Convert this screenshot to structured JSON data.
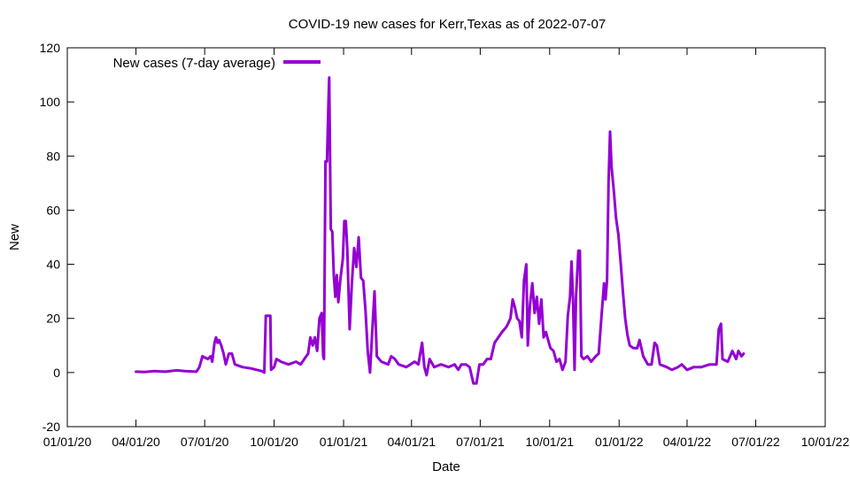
{
  "chart_data": {
    "type": "line",
    "title": "COVID-19 new cases for Kerr,Texas as of 2022-07-07",
    "xlabel": "Date",
    "ylabel": "New",
    "xlim": [
      "2020-01-01",
      "2022-10-01"
    ],
    "ylim": [
      -20,
      120
    ],
    "x_ticks": [
      {
        "date": "2020-01-01",
        "label": "01/01/20"
      },
      {
        "date": "2020-04-01",
        "label": "04/01/20"
      },
      {
        "date": "2020-07-01",
        "label": "07/01/20"
      },
      {
        "date": "2020-10-01",
        "label": "10/01/20"
      },
      {
        "date": "2021-01-01",
        "label": "01/01/21"
      },
      {
        "date": "2021-04-01",
        "label": "04/01/21"
      },
      {
        "date": "2021-07-01",
        "label": "07/01/21"
      },
      {
        "date": "2021-10-01",
        "label": "10/01/21"
      },
      {
        "date": "2022-01-01",
        "label": "01/01/22"
      },
      {
        "date": "2022-04-01",
        "label": "04/01/22"
      },
      {
        "date": "2022-07-01",
        "label": "07/01/22"
      },
      {
        "date": "2022-10-01",
        "label": "10/01/22"
      }
    ],
    "y_ticks": [
      -20,
      0,
      20,
      40,
      60,
      80,
      100,
      120
    ],
    "grid": false,
    "legend": {
      "position": "top-left"
    },
    "series": [
      {
        "name": "New cases (7-day average)",
        "color": "#9400d3",
        "points": [
          [
            "2020-04-01",
            0.3
          ],
          [
            "2020-04-12",
            0.2
          ],
          [
            "2020-04-25",
            0.5
          ],
          [
            "2020-05-10",
            0.3
          ],
          [
            "2020-05-25",
            0.8
          ],
          [
            "2020-06-05",
            0.5
          ],
          [
            "2020-06-20",
            0.3
          ],
          [
            "2020-06-24",
            2
          ],
          [
            "2020-06-28",
            6
          ],
          [
            "2020-07-05",
            5
          ],
          [
            "2020-07-09",
            6
          ],
          [
            "2020-07-11",
            4
          ],
          [
            "2020-07-14",
            11
          ],
          [
            "2020-07-16",
            13
          ],
          [
            "2020-07-18",
            11
          ],
          [
            "2020-07-20",
            12
          ],
          [
            "2020-07-23",
            10
          ],
          [
            "2020-07-26",
            7
          ],
          [
            "2020-07-29",
            3
          ],
          [
            "2020-08-02",
            7
          ],
          [
            "2020-08-06",
            7
          ],
          [
            "2020-08-10",
            3
          ],
          [
            "2020-08-20",
            2
          ],
          [
            "2020-09-01",
            1.5
          ],
          [
            "2020-09-15",
            0.5
          ],
          [
            "2020-09-18",
            0
          ],
          [
            "2020-09-20",
            21
          ],
          [
            "2020-09-23",
            21
          ],
          [
            "2020-09-26",
            21
          ],
          [
            "2020-09-27",
            1
          ],
          [
            "2020-10-01",
            2
          ],
          [
            "2020-10-04",
            5
          ],
          [
            "2020-10-10",
            4
          ],
          [
            "2020-10-20",
            3
          ],
          [
            "2020-10-30",
            4
          ],
          [
            "2020-11-05",
            3
          ],
          [
            "2020-11-10",
            5
          ],
          [
            "2020-11-15",
            7
          ],
          [
            "2020-11-18",
            13
          ],
          [
            "2020-11-21",
            10
          ],
          [
            "2020-11-24",
            13
          ],
          [
            "2020-11-27",
            8
          ],
          [
            "2020-11-30",
            20
          ],
          [
            "2020-12-03",
            22
          ],
          [
            "2020-12-05",
            6
          ],
          [
            "2020-12-06",
            5
          ],
          [
            "2020-12-08",
            78
          ],
          [
            "2020-12-10",
            78
          ],
          [
            "2020-12-12",
            100
          ],
          [
            "2020-12-13",
            109
          ],
          [
            "2020-12-15",
            53
          ],
          [
            "2020-12-17",
            52
          ],
          [
            "2020-12-19",
            36
          ],
          [
            "2020-12-21",
            28
          ],
          [
            "2020-12-23",
            36
          ],
          [
            "2020-12-25",
            26
          ],
          [
            "2020-12-28",
            35
          ],
          [
            "2020-12-31",
            42
          ],
          [
            "2021-01-02",
            56
          ],
          [
            "2021-01-04",
            56
          ],
          [
            "2021-01-06",
            45
          ],
          [
            "2021-01-09",
            16
          ],
          [
            "2021-01-12",
            33
          ],
          [
            "2021-01-15",
            46
          ],
          [
            "2021-01-18",
            39
          ],
          [
            "2021-01-21",
            50
          ],
          [
            "2021-01-24",
            35
          ],
          [
            "2021-01-27",
            34
          ],
          [
            "2021-01-30",
            23
          ],
          [
            "2021-02-02",
            8
          ],
          [
            "2021-02-05",
            0
          ],
          [
            "2021-02-08",
            15
          ],
          [
            "2021-02-11",
            30
          ],
          [
            "2021-02-14",
            6
          ],
          [
            "2021-02-20",
            4
          ],
          [
            "2021-03-01",
            3
          ],
          [
            "2021-03-05",
            6
          ],
          [
            "2021-03-10",
            5
          ],
          [
            "2021-03-15",
            3
          ],
          [
            "2021-03-25",
            2
          ],
          [
            "2021-04-05",
            4
          ],
          [
            "2021-04-10",
            3
          ],
          [
            "2021-04-15",
            11
          ],
          [
            "2021-04-18",
            2
          ],
          [
            "2021-04-21",
            -1
          ],
          [
            "2021-04-25",
            5
          ],
          [
            "2021-05-01",
            2
          ],
          [
            "2021-05-10",
            3
          ],
          [
            "2021-05-20",
            2
          ],
          [
            "2021-05-28",
            3
          ],
          [
            "2021-06-02",
            1
          ],
          [
            "2021-06-06",
            3
          ],
          [
            "2021-06-12",
            3
          ],
          [
            "2021-06-17",
            2
          ],
          [
            "2021-06-22",
            -4
          ],
          [
            "2021-06-26",
            -4
          ],
          [
            "2021-06-30",
            3
          ],
          [
            "2021-07-05",
            3
          ],
          [
            "2021-07-10",
            5
          ],
          [
            "2021-07-15",
            5
          ],
          [
            "2021-07-20",
            11
          ],
          [
            "2021-07-25",
            13
          ],
          [
            "2021-07-30",
            15
          ],
          [
            "2021-08-05",
            17
          ],
          [
            "2021-08-10",
            20
          ],
          [
            "2021-08-13",
            27
          ],
          [
            "2021-08-16",
            24
          ],
          [
            "2021-08-19",
            20
          ],
          [
            "2021-08-22",
            19
          ],
          [
            "2021-08-25",
            13
          ],
          [
            "2021-08-28",
            34
          ],
          [
            "2021-08-31",
            40
          ],
          [
            "2021-09-02",
            10
          ],
          [
            "2021-09-05",
            25
          ],
          [
            "2021-09-08",
            33
          ],
          [
            "2021-09-11",
            22
          ],
          [
            "2021-09-14",
            28
          ],
          [
            "2021-09-17",
            18
          ],
          [
            "2021-09-20",
            27
          ],
          [
            "2021-09-23",
            13
          ],
          [
            "2021-09-26",
            15
          ],
          [
            "2021-09-29",
            12
          ],
          [
            "2021-10-02",
            9
          ],
          [
            "2021-10-06",
            8
          ],
          [
            "2021-10-10",
            4
          ],
          [
            "2021-10-14",
            5
          ],
          [
            "2021-10-18",
            1
          ],
          [
            "2021-10-22",
            4
          ],
          [
            "2021-10-25",
            21
          ],
          [
            "2021-10-28",
            28
          ],
          [
            "2021-10-30",
            41
          ],
          [
            "2021-11-01",
            27
          ],
          [
            "2021-11-03",
            1
          ],
          [
            "2021-11-05",
            28
          ],
          [
            "2021-11-08",
            45
          ],
          [
            "2021-11-10",
            45
          ],
          [
            "2021-11-12",
            6
          ],
          [
            "2021-11-15",
            5
          ],
          [
            "2021-11-20",
            6
          ],
          [
            "2021-11-25",
            4
          ],
          [
            "2021-12-01",
            6
          ],
          [
            "2021-12-05",
            7
          ],
          [
            "2021-12-09",
            22
          ],
          [
            "2021-12-12",
            33
          ],
          [
            "2021-12-14",
            27
          ],
          [
            "2021-12-16",
            34
          ],
          [
            "2021-12-18",
            70
          ],
          [
            "2021-12-20",
            89
          ],
          [
            "2021-12-22",
            76
          ],
          [
            "2021-12-25",
            67
          ],
          [
            "2021-12-28",
            57
          ],
          [
            "2021-12-31",
            51
          ],
          [
            "2022-01-03",
            41
          ],
          [
            "2022-01-06",
            30
          ],
          [
            "2022-01-09",
            20
          ],
          [
            "2022-01-12",
            14
          ],
          [
            "2022-01-15",
            10
          ],
          [
            "2022-01-20",
            9
          ],
          [
            "2022-01-25",
            9
          ],
          [
            "2022-01-28",
            12
          ],
          [
            "2022-02-02",
            6
          ],
          [
            "2022-02-08",
            3
          ],
          [
            "2022-02-13",
            3
          ],
          [
            "2022-02-17",
            11
          ],
          [
            "2022-02-20",
            10
          ],
          [
            "2022-02-24",
            3
          ],
          [
            "2022-03-05",
            2
          ],
          [
            "2022-03-12",
            1
          ],
          [
            "2022-03-20",
            2
          ],
          [
            "2022-03-25",
            3
          ],
          [
            "2022-04-01",
            1
          ],
          [
            "2022-04-10",
            2
          ],
          [
            "2022-04-20",
            2
          ],
          [
            "2022-05-01",
            3
          ],
          [
            "2022-05-10",
            3
          ],
          [
            "2022-05-13",
            16
          ],
          [
            "2022-05-16",
            18
          ],
          [
            "2022-05-18",
            5
          ],
          [
            "2022-05-25",
            4
          ],
          [
            "2022-05-31",
            8
          ],
          [
            "2022-06-05",
            5
          ],
          [
            "2022-06-08",
            8
          ],
          [
            "2022-06-12",
            6
          ],
          [
            "2022-06-15",
            7
          ]
        ]
      }
    ]
  }
}
